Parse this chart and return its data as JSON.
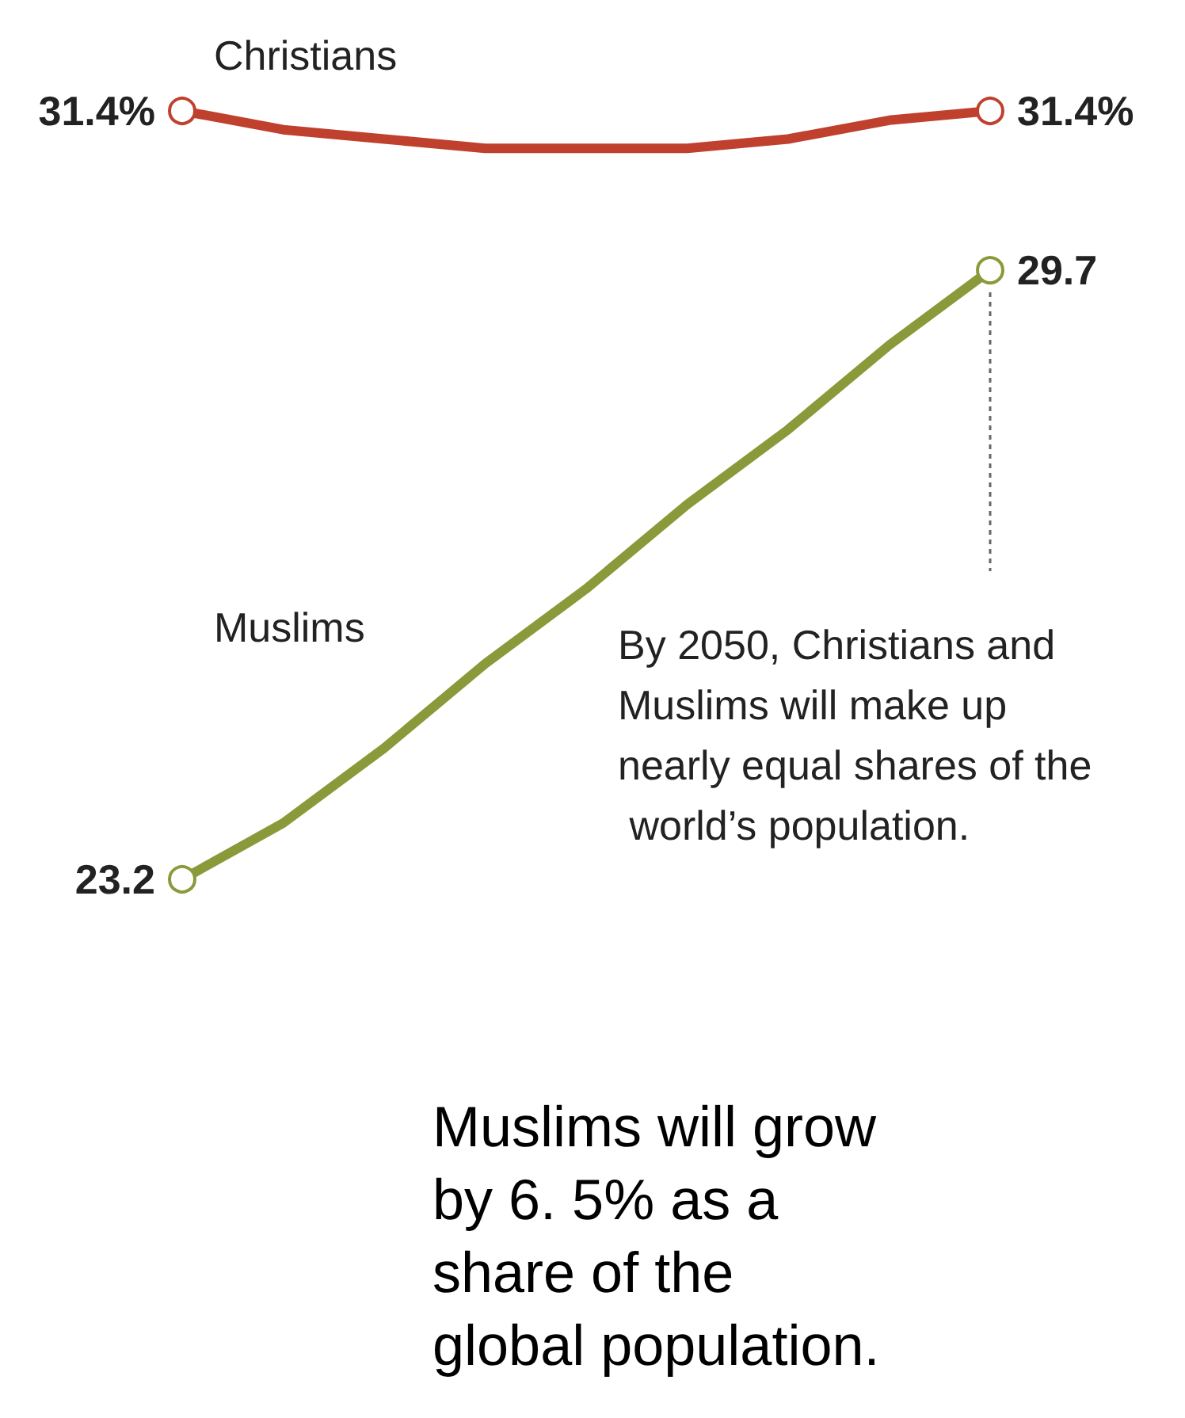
{
  "chart_data": {
    "type": "line",
    "categories": [
      null,
      null,
      null,
      null,
      null,
      null,
      null,
      null,
      null
    ],
    "series": [
      {
        "name": "Christians",
        "color": "#c0402e",
        "values": [
          31.4,
          31.2,
          31.1,
          31.0,
          31.0,
          31.0,
          31.1,
          31.3,
          31.4
        ],
        "value_labels": [
          "31.4%",
          null,
          null,
          null,
          null,
          null,
          null,
          null,
          "31.4%"
        ]
      },
      {
        "name": "Muslims",
        "color": "#8a9a3a",
        "values": [
          23.2,
          23.8,
          24.6,
          25.5,
          26.3,
          27.2,
          28.0,
          28.9,
          29.7
        ],
        "value_labels": [
          "23.2",
          null,
          null,
          null,
          null,
          null,
          null,
          null,
          "29.7"
        ]
      }
    ],
    "line_style": "solid",
    "legend": false,
    "annotations": [
      "By 2050, Christians and Muslims will make up nearly equal shares of the world’s population.",
      "Muslims will grow by 6. 5% as a share of the global population."
    ]
  }
}
